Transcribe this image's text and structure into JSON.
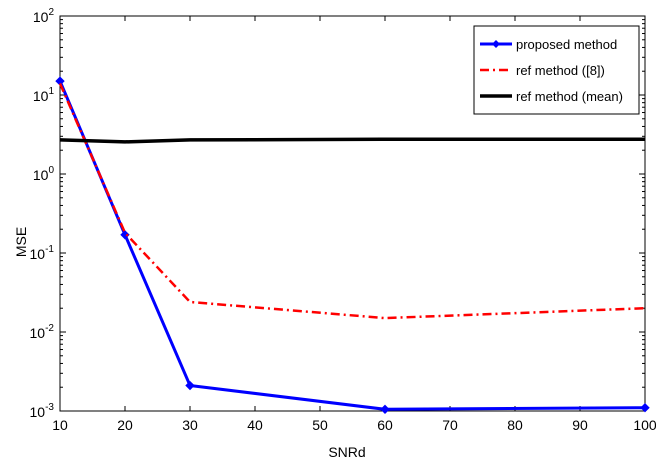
{
  "chart_data": {
    "type": "line",
    "xlabel": "SNRd",
    "ylabel": "MSE",
    "yscale": "log",
    "xlim": [
      10,
      100
    ],
    "ylim": [
      0.001,
      100
    ],
    "x_ticks": [
      10,
      20,
      30,
      40,
      50,
      60,
      70,
      80,
      90,
      100
    ],
    "y_ticks": [
      {
        "base": "10",
        "exp": "-3",
        "value": 0.001
      },
      {
        "base": "10",
        "exp": "-2",
        "value": 0.01
      },
      {
        "base": "10",
        "exp": "-1",
        "value": 0.1
      },
      {
        "base": "10",
        "exp": "0",
        "value": 1
      },
      {
        "base": "10",
        "exp": "1",
        "value": 10
      },
      {
        "base": "10",
        "exp": "2",
        "value": 100
      }
    ],
    "grid": false,
    "legend_position": "top-right",
    "series": [
      {
        "name": "proposed method",
        "color": "#0000ff",
        "style": "solid",
        "marker": "diamond",
        "x": [
          10,
          20,
          30,
          60,
          100
        ],
        "y": [
          15,
          0.17,
          0.0021,
          0.00105,
          0.0011
        ]
      },
      {
        "name": "ref method ([8])",
        "color": "#ff0000",
        "style": "dashdot",
        "marker": "none",
        "x": [
          10,
          20,
          30,
          60,
          100
        ],
        "y": [
          14,
          0.18,
          0.024,
          0.015,
          0.02
        ]
      },
      {
        "name": "ref method (mean)",
        "color": "#000000",
        "style": "solid",
        "marker": "none",
        "x": [
          10,
          20,
          30,
          60,
          100
        ],
        "y": [
          2.7,
          2.55,
          2.7,
          2.75,
          2.75
        ]
      }
    ]
  }
}
